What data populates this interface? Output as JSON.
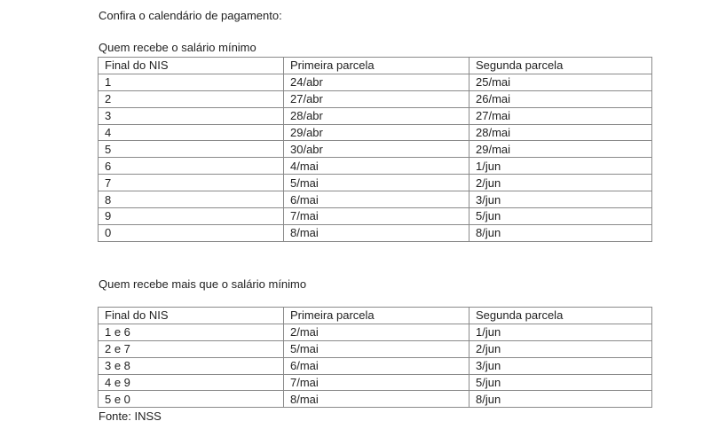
{
  "intro": "Confira o calendário de pagamento:",
  "table1": {
    "caption": "Quem recebe o salário mínimo",
    "headers": [
      "Final do NIS",
      "Primeira parcela",
      "Segunda parcela"
    ],
    "rows": [
      [
        "1",
        "24/abr",
        "25/mai"
      ],
      [
        "2",
        "27/abr",
        "26/mai"
      ],
      [
        "3",
        "28/abr",
        "27/mai"
      ],
      [
        "4",
        "29/abr",
        "28/mai"
      ],
      [
        "5",
        "30/abr",
        "29/mai"
      ],
      [
        "6",
        "4/mai",
        "1/jun"
      ],
      [
        "7",
        "5/mai",
        "2/jun"
      ],
      [
        "8",
        "6/mai",
        "3/jun"
      ],
      [
        "9",
        "7/mai",
        "5/jun"
      ],
      [
        "0",
        "8/mai",
        "8/jun"
      ]
    ]
  },
  "table2": {
    "caption": "Quem recebe mais que o salário mínimo",
    "headers": [
      "Final do NIS",
      "Primeira parcela",
      "Segunda parcela"
    ],
    "rows": [
      [
        "1 e 6",
        "2/mai",
        "1/jun"
      ],
      [
        "2 e 7",
        "5/mai",
        "2/jun"
      ],
      [
        "3 e 8",
        "6/mai",
        "3/jun"
      ],
      [
        "4 e 9",
        "7/mai",
        "5/jun"
      ],
      [
        "5 e 0",
        "8/mai",
        "8/jun"
      ]
    ]
  },
  "source": "Fonte: INSS"
}
